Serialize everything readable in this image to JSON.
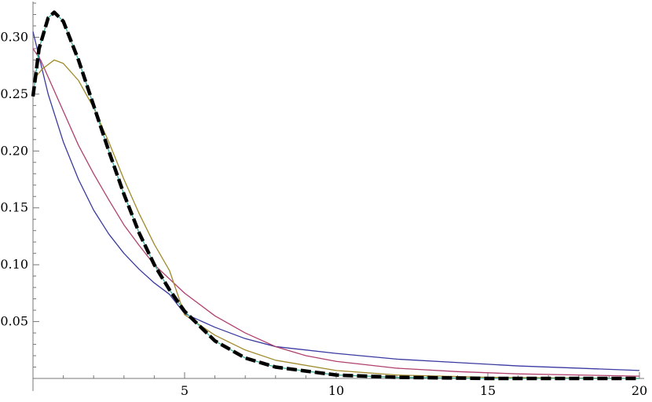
{
  "chart_data": {
    "type": "line",
    "title": "",
    "xlabel": "",
    "ylabel": "",
    "xlim": [
      0,
      20
    ],
    "ylim": [
      0,
      0.33
    ],
    "grid": false,
    "x_ticks": [
      5,
      10,
      15,
      20
    ],
    "x_tick_labels": [
      "5",
      "10",
      "15",
      "20"
    ],
    "y_ticks": [
      0.05,
      0.1,
      0.15,
      0.2,
      0.25,
      0.3
    ],
    "y_tick_labels": [
      "0.05",
      "0.10",
      "0.15",
      "0.20",
      "0.25",
      "0.30"
    ],
    "series": [
      {
        "color": "#3a3aa0",
        "style": "solid",
        "points": [
          [
            0,
            0.305
          ],
          [
            0.5,
            0.25
          ],
          [
            1,
            0.208
          ],
          [
            1.5,
            0.175
          ],
          [
            2,
            0.148
          ],
          [
            2.5,
            0.127
          ],
          [
            3,
            0.11
          ],
          [
            3.5,
            0.096
          ],
          [
            4,
            0.084
          ],
          [
            4.5,
            0.074
          ],
          [
            5,
            0.057
          ],
          [
            6,
            0.045
          ],
          [
            7,
            0.035
          ],
          [
            8,
            0.028
          ],
          [
            10,
            0.022
          ],
          [
            12,
            0.017
          ],
          [
            14,
            0.014
          ],
          [
            16,
            0.011
          ],
          [
            18,
            0.009
          ],
          [
            20,
            0.007
          ]
        ]
      },
      {
        "color": "#b0406e",
        "style": "solid",
        "points": [
          [
            0,
            0.29
          ],
          [
            0.25,
            0.28
          ],
          [
            0.5,
            0.265
          ],
          [
            1,
            0.235
          ],
          [
            1.5,
            0.205
          ],
          [
            2,
            0.18
          ],
          [
            2.5,
            0.157
          ],
          [
            3,
            0.135
          ],
          [
            3.5,
            0.117
          ],
          [
            4,
            0.1
          ],
          [
            5,
            0.075
          ],
          [
            6,
            0.055
          ],
          [
            7,
            0.04
          ],
          [
            8,
            0.028
          ],
          [
            9,
            0.02
          ],
          [
            10,
            0.015
          ],
          [
            12,
            0.009
          ],
          [
            14,
            0.006
          ],
          [
            16,
            0.004
          ],
          [
            18,
            0.003
          ],
          [
            20,
            0.002
          ]
        ]
      },
      {
        "color": "#a08a2a",
        "style": "solid",
        "points": [
          [
            0,
            0.262
          ],
          [
            0.3,
            0.272
          ],
          [
            0.7,
            0.28
          ],
          [
            1,
            0.277
          ],
          [
            1.5,
            0.262
          ],
          [
            2,
            0.238
          ],
          [
            2.5,
            0.208
          ],
          [
            3,
            0.175
          ],
          [
            3.5,
            0.145
          ],
          [
            4,
            0.118
          ],
          [
            4.5,
            0.095
          ],
          [
            5,
            0.056
          ],
          [
            6,
            0.038
          ],
          [
            7,
            0.025
          ],
          [
            8,
            0.016
          ],
          [
            10,
            0.007
          ],
          [
            12,
            0.003
          ],
          [
            15,
            0.001
          ],
          [
            20,
            0.0
          ]
        ]
      },
      {
        "color": "#3cae96",
        "style": "solid",
        "points": [
          [
            0,
            0.248
          ],
          [
            0.2,
            0.29
          ],
          [
            0.5,
            0.317
          ],
          [
            0.7,
            0.322
          ],
          [
            1,
            0.314
          ],
          [
            1.5,
            0.28
          ],
          [
            2,
            0.24
          ],
          [
            2.5,
            0.2
          ],
          [
            3,
            0.162
          ],
          [
            3.5,
            0.128
          ],
          [
            4,
            0.1
          ],
          [
            4.5,
            0.078
          ],
          [
            5,
            0.059
          ],
          [
            6,
            0.033
          ],
          [
            7,
            0.018
          ],
          [
            8,
            0.01
          ],
          [
            10,
            0.003
          ],
          [
            12,
            0.001
          ],
          [
            15,
            0.0
          ],
          [
            20,
            0.0
          ]
        ]
      },
      {
        "color": "#000000",
        "style": "dashed",
        "points": [
          [
            0,
            0.248
          ],
          [
            0.2,
            0.29
          ],
          [
            0.5,
            0.317
          ],
          [
            0.7,
            0.322
          ],
          [
            1,
            0.314
          ],
          [
            1.5,
            0.28
          ],
          [
            2,
            0.24
          ],
          [
            2.5,
            0.2
          ],
          [
            3,
            0.162
          ],
          [
            3.5,
            0.128
          ],
          [
            4,
            0.1
          ],
          [
            4.5,
            0.078
          ],
          [
            5,
            0.059
          ],
          [
            6,
            0.033
          ],
          [
            7,
            0.018
          ],
          [
            8,
            0.01
          ],
          [
            10,
            0.003
          ],
          [
            12,
            0.001
          ],
          [
            15,
            0.0
          ],
          [
            20,
            0.0
          ]
        ]
      }
    ]
  }
}
